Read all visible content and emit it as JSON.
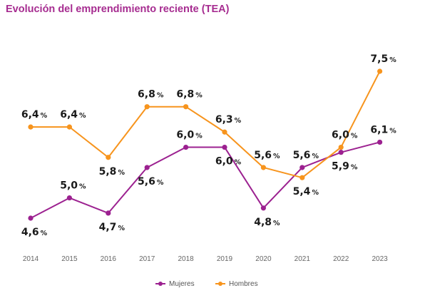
{
  "chart_data": {
    "type": "line",
    "title": "Evolución del emprendimiento reciente (TEA)",
    "xlabel": "",
    "ylabel": "",
    "categories": [
      "2014",
      "2015",
      "2016",
      "2017",
      "2018",
      "2019",
      "2020",
      "2021",
      "2022",
      "2023"
    ],
    "series": [
      {
        "name": "Mujeres",
        "color": "#9c2190",
        "values": [
          4.6,
          5.0,
          4.7,
          5.6,
          6.0,
          6.0,
          4.8,
          5.6,
          5.9,
          6.1
        ],
        "labels": [
          "4,6",
          "5,0",
          "4,7",
          "5,6",
          "6,0",
          "6,0",
          "4,8",
          "5,6",
          "5,9",
          "6,1"
        ],
        "label_pos": [
          "below",
          "above",
          "below",
          "below",
          "above",
          "below",
          "below",
          "above",
          "below",
          "above"
        ]
      },
      {
        "name": "Hombres",
        "color": "#f7941d",
        "values": [
          6.4,
          6.4,
          5.8,
          6.8,
          6.8,
          6.3,
          5.6,
          5.4,
          6.0,
          7.5
        ],
        "labels": [
          "6,4",
          "6,4",
          "5,8",
          "6,8",
          "6,8",
          "6,3",
          "5,6",
          "5,4",
          "6,0",
          "7,5"
        ],
        "label_pos": [
          "above",
          "above",
          "below",
          "above",
          "above",
          "above",
          "above",
          "below",
          "above",
          "above"
        ]
      }
    ],
    "value_suffix": "%",
    "ylim": [
      4.0,
      7.8
    ],
    "grid": false,
    "legend_position": "bottom"
  }
}
